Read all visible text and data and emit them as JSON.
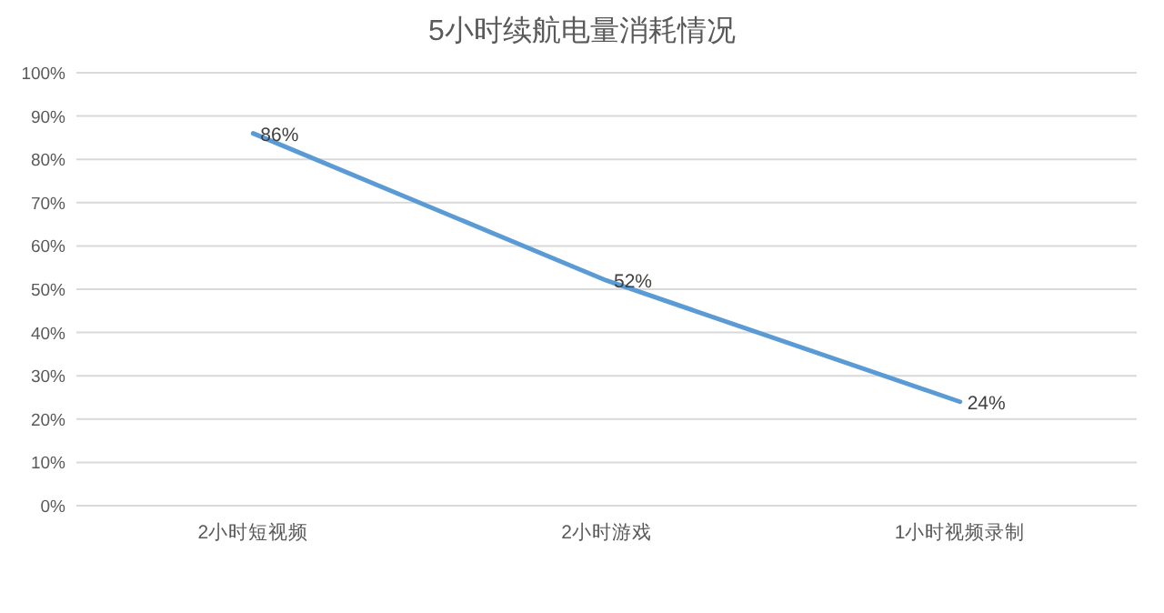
{
  "chart_data": {
    "type": "line",
    "title": "5小时续航电量消耗情况",
    "categories": [
      "2小时短视频",
      "2小时游戏",
      "1小时视频录制"
    ],
    "series": [
      {
        "color": "#5b9bd5",
        "values": [
          86,
          52,
          24
        ],
        "value_labels": [
          "86%",
          "52%",
          "24%"
        ]
      }
    ],
    "ylim": [
      0,
      100
    ],
    "yticks": [
      {
        "value": 0,
        "label": "0%"
      },
      {
        "value": 10,
        "label": "10%"
      },
      {
        "value": 20,
        "label": "20%"
      },
      {
        "value": 30,
        "label": "30%"
      },
      {
        "value": 40,
        "label": "40%"
      },
      {
        "value": 50,
        "label": "50%"
      },
      {
        "value": 60,
        "label": "60%"
      },
      {
        "value": 70,
        "label": "70%"
      },
      {
        "value": 80,
        "label": "80%"
      },
      {
        "value": 90,
        "label": "90%"
      },
      {
        "value": 100,
        "label": "100%"
      }
    ],
    "grid": "y",
    "marker": "none",
    "line_style": "solid"
  }
}
